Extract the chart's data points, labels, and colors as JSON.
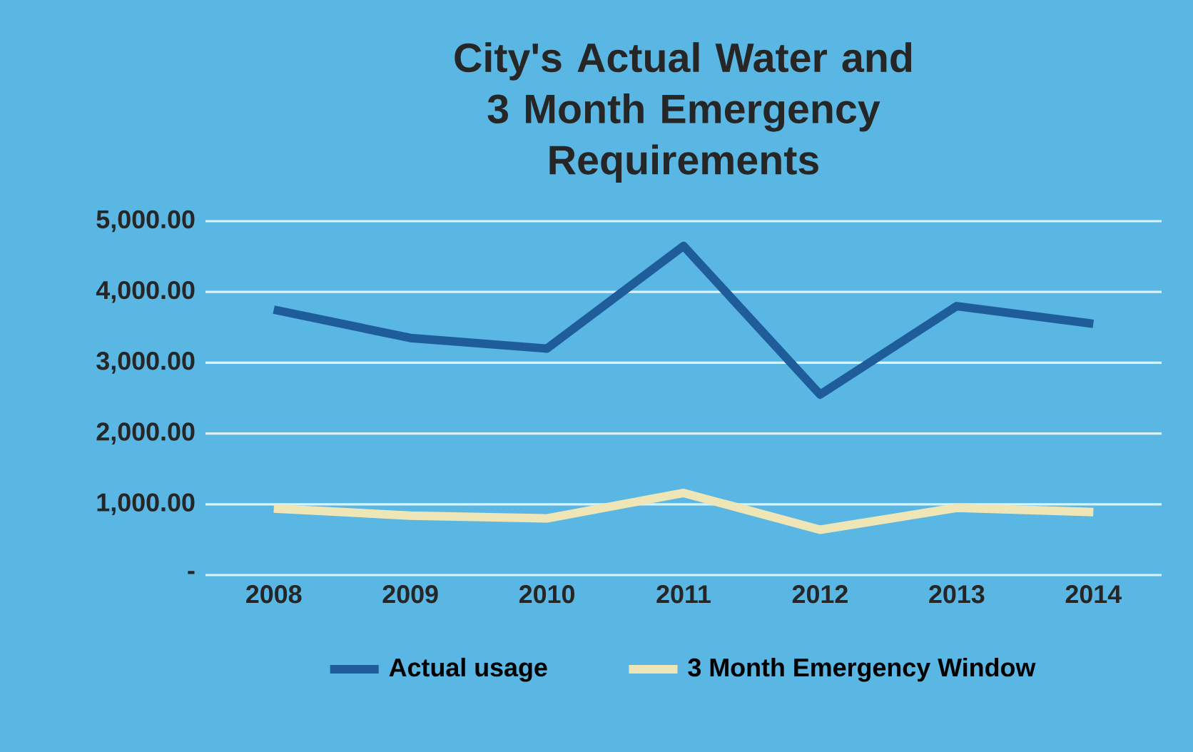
{
  "chart_data": {
    "type": "line",
    "title": "City's Actual Water and 3 Month Emergency Requirements",
    "categories": [
      "2008",
      "2009",
      "2010",
      "2011",
      "2012",
      "2013",
      "2014"
    ],
    "series": [
      {
        "name": "Actual usage",
        "color": "#1f5c9a",
        "values": [
          3750,
          3350,
          3200,
          4650,
          2550,
          3800,
          3550
        ]
      },
      {
        "name": "3 Month Emergency Window",
        "color": "#efe6b8",
        "values": [
          940,
          840,
          800,
          1160,
          640,
          950,
          890
        ]
      }
    ],
    "ylim": [
      0,
      5000
    ],
    "yticks": [
      {
        "value": 0,
        "label": "-"
      },
      {
        "value": 1000,
        "label": "1,000.00"
      },
      {
        "value": 2000,
        "label": "2,000.00"
      },
      {
        "value": 3000,
        "label": "3,000.00"
      },
      {
        "value": 4000,
        "label": "4,000.00"
      },
      {
        "value": 5000,
        "label": "5,000.00"
      }
    ],
    "grid": "y",
    "legend": "bottom"
  }
}
